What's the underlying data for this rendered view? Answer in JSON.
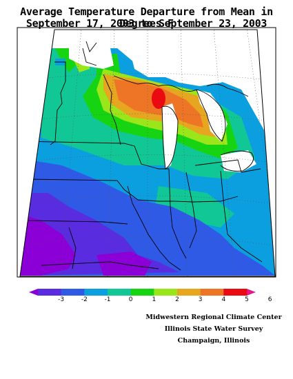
{
  "title": {
    "line1": "Average Temperature Departure from Mean in Degrees F",
    "line2": "September 17, 2003 to September 23, 2003"
  },
  "legend": {
    "ticks": [
      "-3",
      "-2",
      "-1",
      "0",
      "1",
      "2",
      "3",
      "4",
      "5",
      "6"
    ],
    "colors": [
      "#8a00d6",
      "#5a2ce0",
      "#2f5ae6",
      "#0b9fe0",
      "#12c796",
      "#16d412",
      "#9be61b",
      "#e6a61f",
      "#ee7426",
      "#ea0a12",
      "#e6198c"
    ]
  },
  "credits": {
    "line1": "Midwestern Regional Climate Center",
    "line2": "Illinois State Water Survey",
    "line3": "Champaign, Illinois"
  }
}
